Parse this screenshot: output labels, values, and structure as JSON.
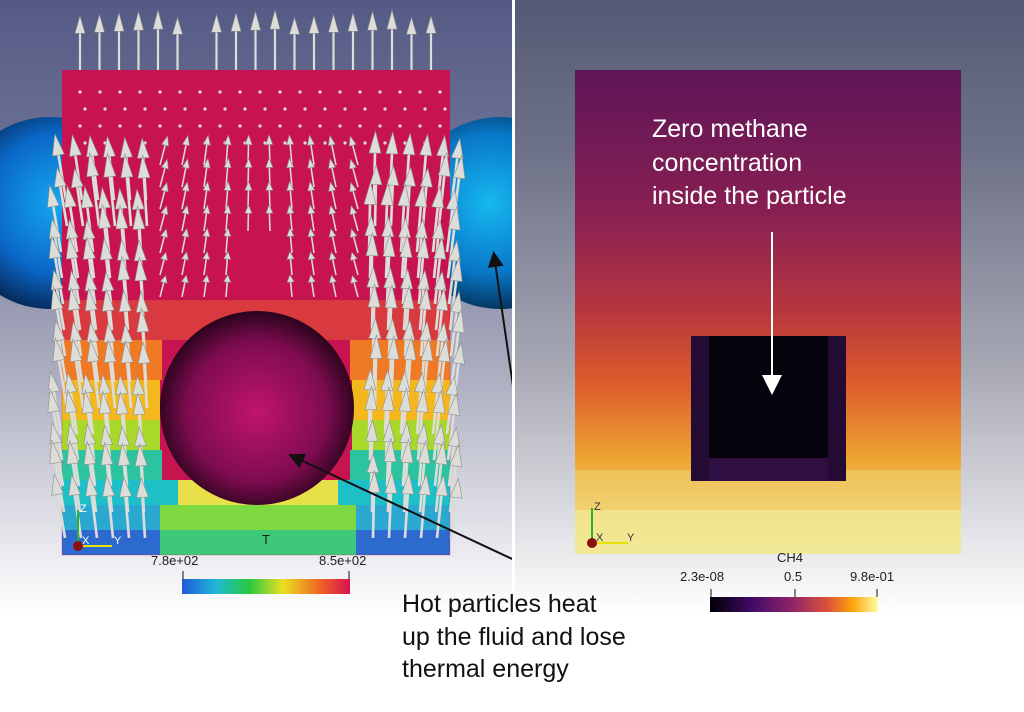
{
  "left_view": {
    "scalar_name": "T",
    "colorbar": {
      "min_label": "7.8e+02",
      "max_label": "8.5e+02",
      "colormap": "rainbow"
    },
    "axes": {
      "z": "Z",
      "x": "X",
      "y": "Y"
    }
  },
  "right_view": {
    "scalar_name": "CH4",
    "colorbar": {
      "min_label": "2.3e-08",
      "mid_label": "0.5",
      "max_label": "9.8e-01",
      "colormap": "inferno"
    },
    "axes": {
      "z": "Z",
      "x": "X",
      "y": "Y"
    }
  },
  "annotations": {
    "hot_particles": [
      "Hot particles heat",
      "up the fluid and lose",
      "thermal energy"
    ],
    "zero_methane": [
      "Zero methane",
      "concentration",
      "inside the particle"
    ]
  },
  "colors": {
    "particle_blue": "#0a78d8",
    "particle_magenta": "#a01068",
    "fluid_hot": "#c71450",
    "ch4_dark": "#6a1a5a",
    "arrow": "#dcdcd8"
  }
}
